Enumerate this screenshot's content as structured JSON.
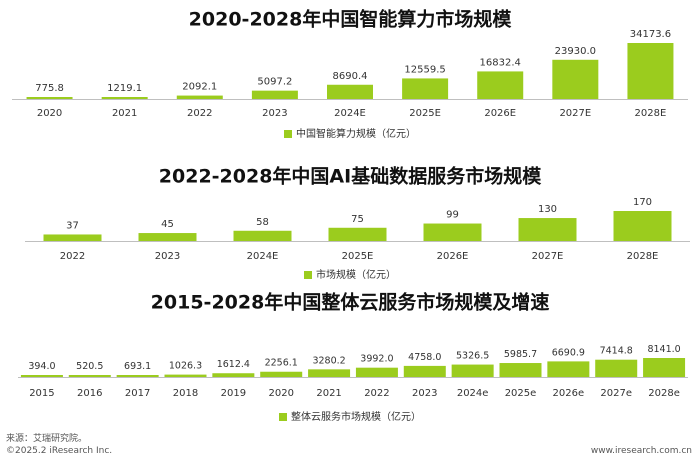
{
  "colors": {
    "bar": "#9bcc1e",
    "axis": "#bfbfbf",
    "text": "#333333"
  },
  "chart_data": [
    {
      "type": "bar",
      "title": "2020-2028年中国智能算力市场规模",
      "categories": [
        "2020",
        "2021",
        "2022",
        "2023",
        "2024E",
        "2025E",
        "2026E",
        "2027E",
        "2028E"
      ],
      "series": [
        {
          "name": "中国智能算力规模（亿元）",
          "values": [
            775.8,
            1219.1,
            2092.1,
            5097.2,
            8690.4,
            12559.5,
            16832.4,
            23930.0,
            34173.6
          ],
          "labels": [
            "775.8",
            "1219.1",
            "2092.1",
            "5097.2",
            "8690.4",
            "12559.5",
            "16832.4",
            "23930.0",
            "34173.6"
          ]
        }
      ],
      "ylim": [
        0,
        34173.6
      ],
      "legend": "bottom"
    },
    {
      "type": "bar",
      "title": "2022-2028年中国AI基础数据服务市场规模",
      "categories": [
        "2022",
        "2023",
        "2024E",
        "2025E",
        "2026E",
        "2027E",
        "2028E"
      ],
      "series": [
        {
          "name": "市场规模（亿元）",
          "values": [
            37,
            45,
            58,
            75,
            99,
            130,
            170
          ],
          "labels": [
            "37",
            "45",
            "58",
            "75",
            "99",
            "130",
            "170"
          ]
        }
      ],
      "ylim": [
        0,
        170
      ],
      "legend": "bottom"
    },
    {
      "type": "bar",
      "title": "2015-2028年中国整体云服务市场规模及增速",
      "categories": [
        "2015",
        "2016",
        "2017",
        "2018",
        "2019",
        "2020",
        "2021",
        "2022",
        "2023",
        "2024e",
        "2025e",
        "2026e",
        "2027e",
        "2028e"
      ],
      "series": [
        {
          "name": "整体云服务市场规模（亿元）",
          "values": [
            394.0,
            520.5,
            693.1,
            1026.3,
            1612.4,
            2256.1,
            3280.2,
            3992.0,
            4758.0,
            5326.5,
            5985.7,
            6690.9,
            7414.8,
            8141.0
          ],
          "labels": [
            "394.0",
            "520.5",
            "693.1",
            "1026.3",
            "1612.4",
            "2256.1",
            "3280.2",
            "3992.0",
            "4758.0",
            "5326.5",
            "5985.7",
            "6690.9",
            "7414.8",
            "8141.0"
          ]
        }
      ],
      "ylim": [
        0,
        8141.0
      ],
      "legend": "bottom"
    }
  ],
  "footer": {
    "source": "来源：艾瑞研究院。",
    "copyright": "©2025.2 iResearch Inc.",
    "website": "www.iresearch.com.cn"
  }
}
